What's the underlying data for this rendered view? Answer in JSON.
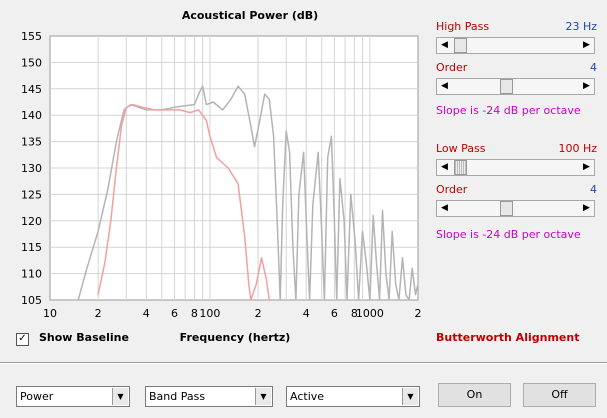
{
  "chart_data": {
    "type": "line",
    "title": "Acoustical Power (dB)",
    "xlabel": "Frequency (hertz)",
    "ylabel": "",
    "x_scale": "log",
    "xlim": [
      10,
      2000
    ],
    "ylim": [
      105,
      155
    ],
    "y_ticks": [
      105,
      110,
      115,
      120,
      125,
      130,
      135,
      140,
      145,
      150,
      155
    ],
    "x_ticks": [
      {
        "v": 10,
        "label": "10"
      },
      {
        "v": 20,
        "label": "2"
      },
      {
        "v": 40,
        "label": "4"
      },
      {
        "v": 60,
        "label": "6"
      },
      {
        "v": 80,
        "label": "8"
      },
      {
        "v": 100,
        "label": "100"
      },
      {
        "v": 200,
        "label": "2"
      },
      {
        "v": 400,
        "label": "4"
      },
      {
        "v": 600,
        "label": "6"
      },
      {
        "v": 800,
        "label": "8"
      },
      {
        "v": 1000,
        "label": "1000"
      },
      {
        "v": 2000,
        "label": "2"
      }
    ],
    "x_minor": [
      30,
      50,
      70,
      90,
      300,
      500,
      700,
      900
    ],
    "grid": true,
    "series": [
      {
        "color": "#b4b4b4",
        "points": [
          [
            15,
            105
          ],
          [
            17,
            111
          ],
          [
            20,
            118
          ],
          [
            23,
            126
          ],
          [
            26,
            135
          ],
          [
            29,
            141
          ],
          [
            32,
            142
          ],
          [
            40,
            141
          ],
          [
            50,
            141
          ],
          [
            60,
            141.5
          ],
          [
            70,
            141.8
          ],
          [
            80,
            142
          ],
          [
            85,
            144
          ],
          [
            90,
            145.5
          ],
          [
            95,
            142
          ],
          [
            105,
            142.5
          ],
          [
            120,
            141
          ],
          [
            135,
            143
          ],
          [
            150,
            145.5
          ],
          [
            165,
            144
          ],
          [
            180,
            138
          ],
          [
            190,
            134
          ],
          [
            205,
            139
          ],
          [
            220,
            144
          ],
          [
            235,
            143
          ],
          [
            250,
            136
          ],
          [
            265,
            118
          ],
          [
            275,
            105
          ],
          [
            285,
            123
          ],
          [
            300,
            137
          ],
          [
            315,
            133
          ],
          [
            330,
            115
          ],
          [
            345,
            105
          ],
          [
            360,
            125
          ],
          [
            385,
            133
          ],
          [
            405,
            116
          ],
          [
            420,
            105
          ],
          [
            440,
            123
          ],
          [
            475,
            133
          ],
          [
            500,
            118
          ],
          [
            520,
            105
          ],
          [
            545,
            132
          ],
          [
            575,
            136
          ],
          [
            600,
            120
          ],
          [
            620,
            105
          ],
          [
            650,
            128
          ],
          [
            690,
            120
          ],
          [
            720,
            105
          ],
          [
            760,
            125
          ],
          [
            810,
            116
          ],
          [
            850,
            105
          ],
          [
            900,
            118
          ],
          [
            950,
            112
          ],
          [
            1000,
            105
          ],
          [
            1050,
            121
          ],
          [
            1100,
            112
          ],
          [
            1150,
            105
          ],
          [
            1200,
            122
          ],
          [
            1260,
            110
          ],
          [
            1320,
            105
          ],
          [
            1380,
            118
          ],
          [
            1450,
            108
          ],
          [
            1520,
            105
          ],
          [
            1600,
            113
          ],
          [
            1680,
            106
          ],
          [
            1760,
            105
          ],
          [
            1840,
            111
          ],
          [
            1930,
            106
          ],
          [
            2000,
            108
          ]
        ]
      },
      {
        "color": "#f2a0a0",
        "points": [
          [
            20,
            106
          ],
          [
            22,
            112
          ],
          [
            24,
            120
          ],
          [
            26,
            130
          ],
          [
            28,
            138
          ],
          [
            30,
            141.5
          ],
          [
            33,
            142
          ],
          [
            38,
            141.5
          ],
          [
            45,
            141
          ],
          [
            55,
            141
          ],
          [
            65,
            141
          ],
          [
            75,
            140.5
          ],
          [
            85,
            141
          ],
          [
            95,
            139
          ],
          [
            100,
            136
          ],
          [
            110,
            132
          ],
          [
            130,
            130
          ],
          [
            150,
            127
          ],
          [
            165,
            117
          ],
          [
            175,
            108
          ],
          [
            180,
            105
          ],
          [
            195,
            108
          ],
          [
            210,
            113
          ],
          [
            225,
            109
          ],
          [
            235,
            105
          ]
        ]
      }
    ]
  },
  "controls": {
    "high_pass": {
      "label": "High Pass",
      "value": "23 Hz",
      "slider_pos": 0.02
    },
    "hp_order": {
      "label": "Order",
      "value": "4",
      "slider_pos": 0.42
    },
    "hp_slope": "Slope is -24 dB per octave",
    "low_pass": {
      "label": "Low Pass",
      "value": "100 Hz",
      "slider_pos": 0.02
    },
    "lp_order": {
      "label": "Order",
      "value": "4",
      "slider_pos": 0.42
    },
    "lp_slope": "Slope is -24 dB per octave"
  },
  "show_baseline": {
    "label": "Show Baseline",
    "checked": true,
    "check_mark": "✓"
  },
  "alignment": "Butterworth Alignment",
  "selects": {
    "mode": "Power",
    "filter": "Band Pass",
    "type": "Active"
  },
  "buttons": {
    "on": "On",
    "off": "Off"
  },
  "colors": {
    "accent_red": "#c00000",
    "value_blue": "#1f4aa8",
    "slope_magenta": "#cc00cc"
  }
}
